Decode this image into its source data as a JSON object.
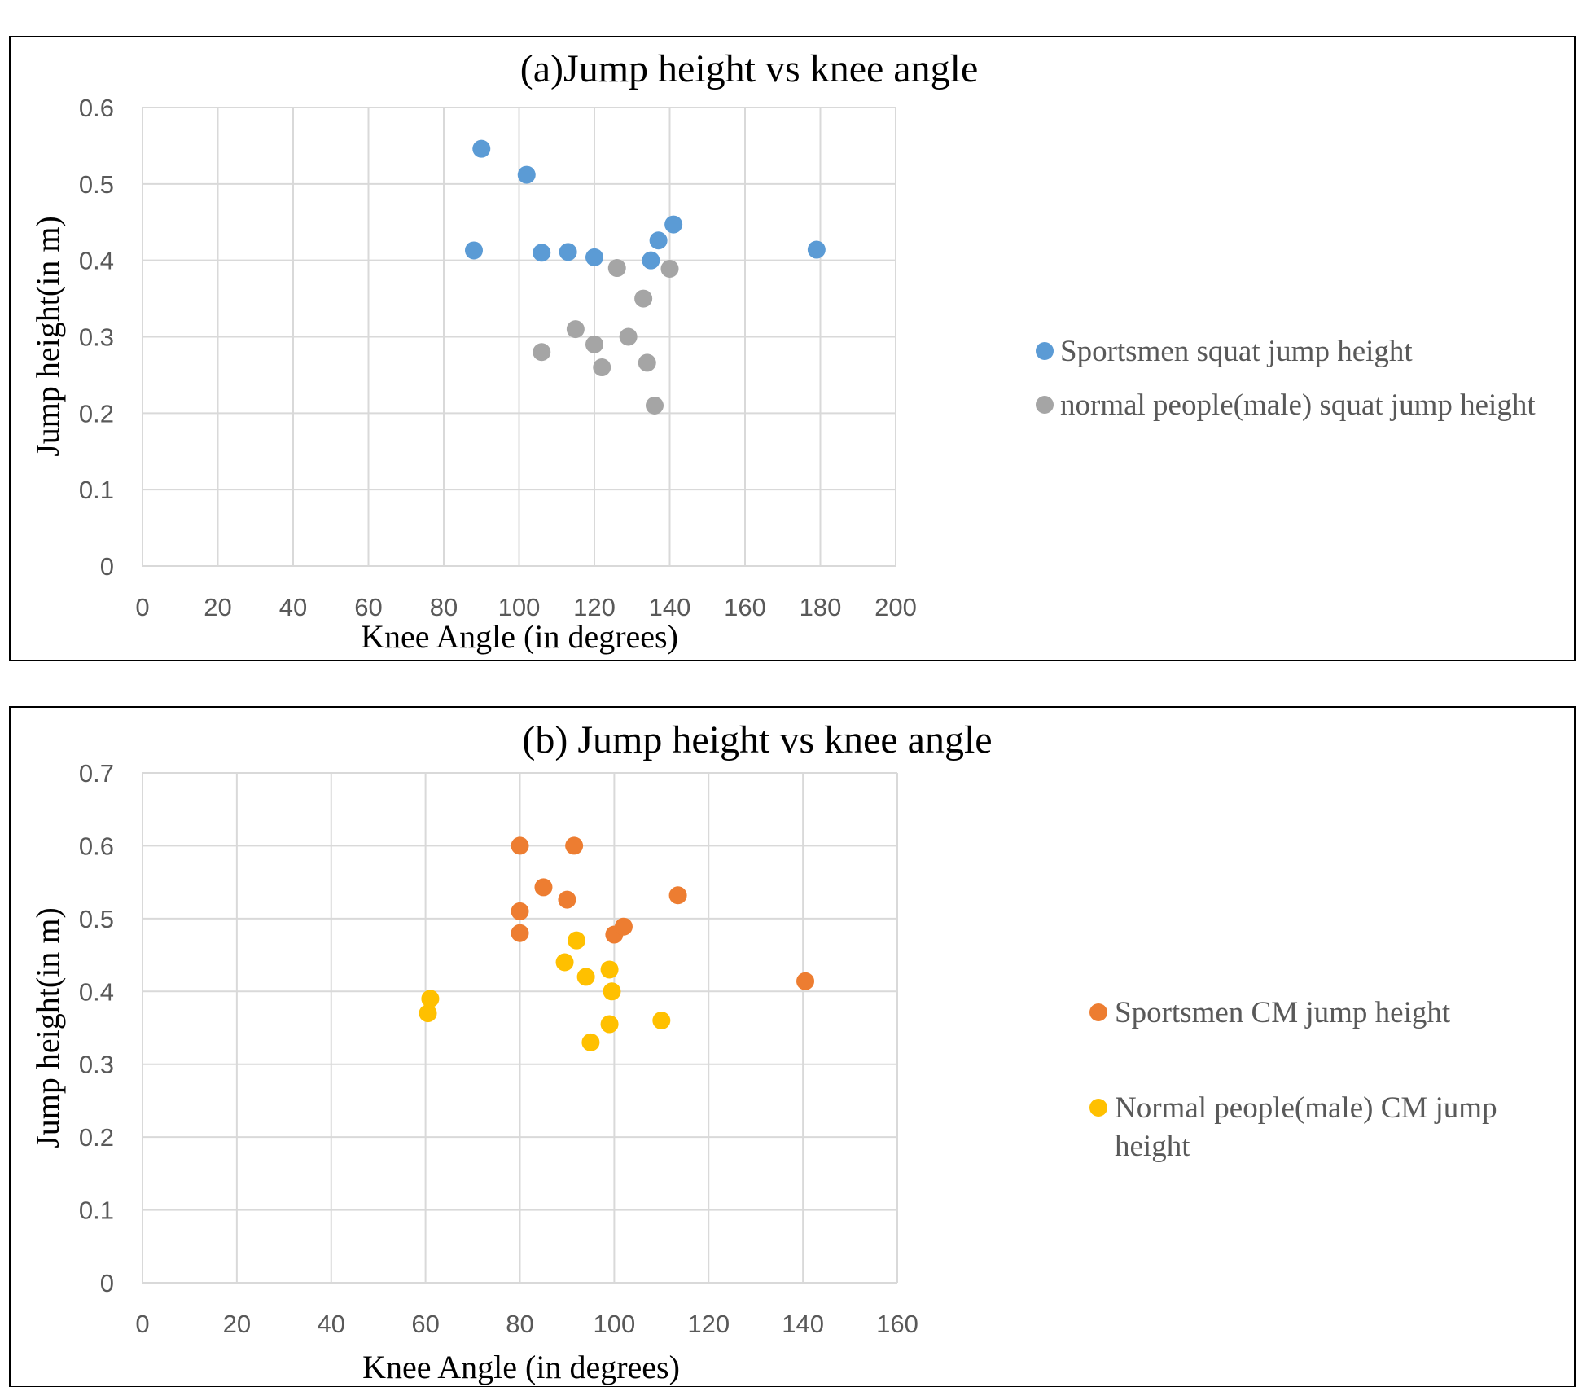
{
  "chart_data": [
    {
      "type": "scatter",
      "title": "(a)Jump height vs knee angle",
      "xlabel": "Knee Angle (in degrees)",
      "ylabel": "Jump height(in m)",
      "xlim": [
        0,
        200
      ],
      "ylim": [
        0,
        0.6
      ],
      "xticks": [
        "0",
        "20",
        "40",
        "60",
        "80",
        "100",
        "120",
        "140",
        "160",
        "180",
        "200"
      ],
      "yticks": [
        "0",
        "0.1",
        "0.2",
        "0.3",
        "0.4",
        "0.5",
        "0.6"
      ],
      "grid": true,
      "legend_position": "right",
      "series": [
        {
          "name": "Sportsmen squat jump height",
          "color": "#5b9bd5",
          "points": [
            [
              88,
              0.413
            ],
            [
              90,
              0.546
            ],
            [
              102,
              0.512
            ],
            [
              106,
              0.41
            ],
            [
              113,
              0.411
            ],
            [
              120,
              0.404
            ],
            [
              135,
              0.4
            ],
            [
              137,
              0.426
            ],
            [
              141,
              0.447
            ],
            [
              179,
              0.414
            ]
          ]
        },
        {
          "name": "normal people(male) squat jump height",
          "color": "#a5a5a5",
          "points": [
            [
              106,
              0.28
            ],
            [
              115,
              0.31
            ],
            [
              120,
              0.29
            ],
            [
              122,
              0.26
            ],
            [
              126,
              0.39
            ],
            [
              129,
              0.3
            ],
            [
              133,
              0.35
            ],
            [
              134,
              0.266
            ],
            [
              136,
              0.21
            ],
            [
              140,
              0.389
            ]
          ]
        }
      ]
    },
    {
      "type": "scatter",
      "title": "(b) Jump height vs knee angle",
      "xlabel": "Knee Angle (in degrees)",
      "ylabel": "Jump height(in m)",
      "xlim": [
        0,
        160
      ],
      "ylim": [
        0,
        0.7
      ],
      "xticks": [
        "0",
        "20",
        "40",
        "60",
        "80",
        "100",
        "120",
        "140",
        "160"
      ],
      "yticks": [
        "0",
        "0.1",
        "0.2",
        "0.3",
        "0.4",
        "0.5",
        "0.6",
        "0.7"
      ],
      "grid": true,
      "legend_position": "right",
      "series": [
        {
          "name": "Sportsmen CM jump height",
          "color": "#ed7d31",
          "points": [
            [
              80,
              0.6
            ],
            [
              80,
              0.51
            ],
            [
              80,
              0.48
            ],
            [
              85,
              0.543
            ],
            [
              90,
              0.526
            ],
            [
              91.5,
              0.6
            ],
            [
              100,
              0.478
            ],
            [
              102,
              0.489
            ],
            [
              113.5,
              0.532
            ],
            [
              140.5,
              0.414
            ]
          ]
        },
        {
          "name": "Normal people(male) CM jump height",
          "color": "#ffc000",
          "points": [
            [
              60.5,
              0.37
            ],
            [
              61,
              0.39
            ],
            [
              89.5,
              0.44
            ],
            [
              92,
              0.47
            ],
            [
              94,
              0.42
            ],
            [
              95,
              0.33
            ],
            [
              99,
              0.43
            ],
            [
              99.5,
              0.4
            ],
            [
              99,
              0.355
            ],
            [
              110,
              0.36
            ]
          ]
        }
      ]
    }
  ]
}
